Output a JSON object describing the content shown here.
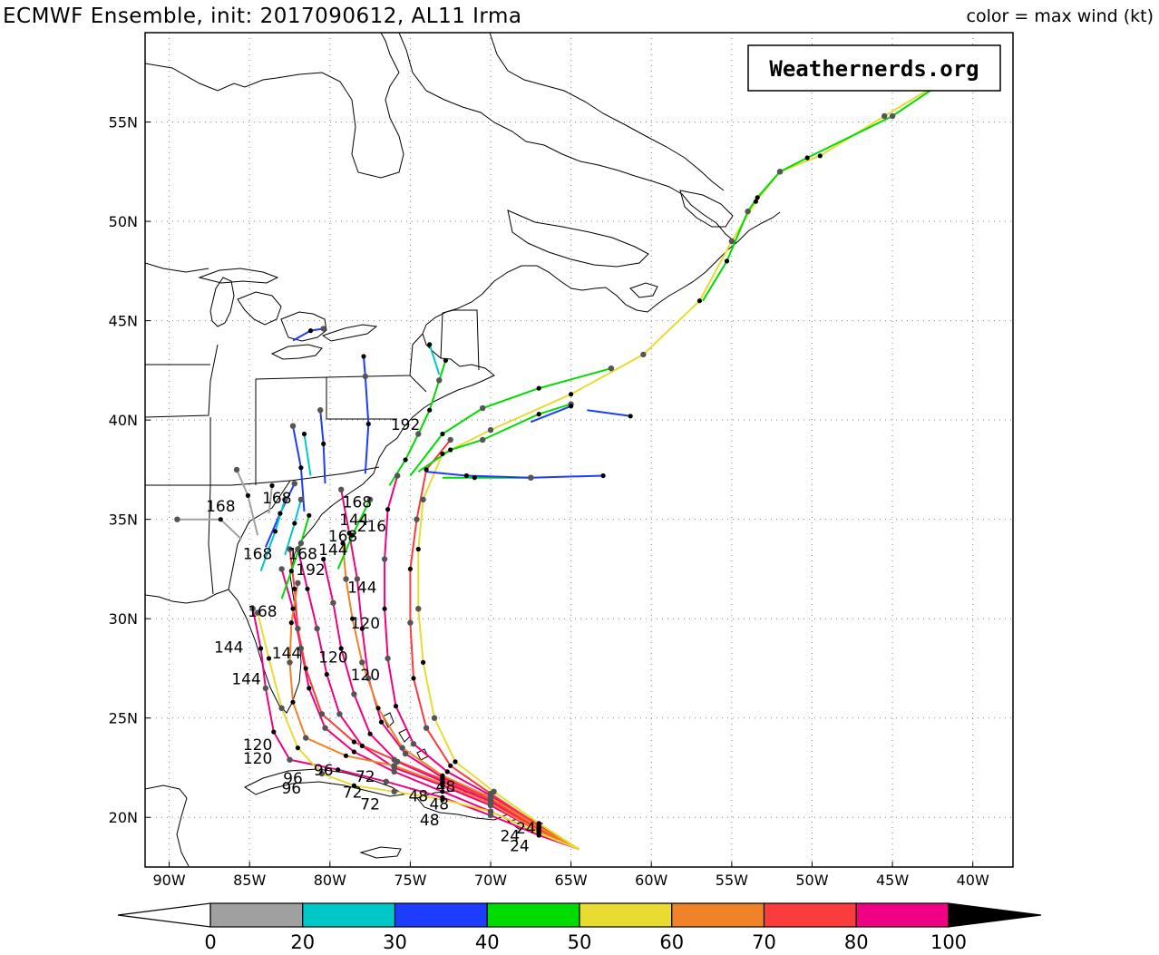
{
  "header": {
    "title": "ECMWF Ensemble, init: 2017090612, AL11 Irma",
    "legend_caption": "color = max wind (kt)"
  },
  "brand": {
    "text": "Weathernerds.org"
  },
  "axes": {
    "lon_labels": [
      "90W",
      "85W",
      "80W",
      "75W",
      "70W",
      "65W",
      "60W",
      "55W",
      "50W",
      "45W",
      "40W"
    ],
    "lon_values": [
      -90,
      -85,
      -80,
      -75,
      -70,
      -65,
      -60,
      -55,
      -50,
      -45,
      -40
    ],
    "lat_labels": [
      "20N",
      "25N",
      "30N",
      "35N",
      "40N",
      "45N",
      "50N",
      "55N"
    ],
    "lat_values": [
      20,
      25,
      30,
      35,
      40,
      45,
      50,
      55
    ],
    "lon_range": [
      -91.5,
      -37.5
    ],
    "lat_range": [
      17.5,
      59.5
    ],
    "grid": "dotted"
  },
  "colorbar": {
    "labels": [
      "0",
      "20",
      "30",
      "40",
      "50",
      "60",
      "70",
      "80",
      "100"
    ],
    "bins": [
      {
        "range": "20-30",
        "color": "#00c8c8"
      },
      {
        "range": "30-40",
        "color": "#1e3cff"
      },
      {
        "range": "40-50",
        "color": "#00dc00"
      },
      {
        "range": "50-60",
        "color": "#e6dc32"
      },
      {
        "range": "60-70",
        "color": "#f08228"
      },
      {
        "range": "70-80",
        "color": "#fa3c3c"
      },
      {
        "range": "80-100",
        "color": "#f00082"
      }
    ],
    "low_color": "#a0a0a0",
    "high_color": "#000000",
    "below_color": "#ffffff"
  },
  "tracks": [
    {
      "color": "#f00082",
      "points": [
        [
          -64.5,
          18.4
        ],
        [
          -67,
          19.2
        ],
        [
          -70,
          20.3
        ],
        [
          -73,
          21.3
        ],
        [
          -76,
          22.3
        ],
        [
          -78.5,
          23.3
        ],
        [
          -80.3,
          24.5
        ],
        [
          -81.3,
          26.5
        ],
        [
          -81.8,
          28.5
        ],
        [
          -82.3,
          30.5
        ],
        [
          -83,
          32.5
        ]
      ]
    },
    {
      "color": "#f00082",
      "points": [
        [
          -64.5,
          18.4
        ],
        [
          -67,
          19.3
        ],
        [
          -70,
          20.6
        ],
        [
          -73,
          21.6
        ],
        [
          -76,
          22.5
        ],
        [
          -78,
          23.6
        ],
        [
          -79.4,
          25.2
        ],
        [
          -80.2,
          27.2
        ],
        [
          -80.8,
          29.5
        ],
        [
          -81.4,
          31.5
        ],
        [
          -82,
          33.5
        ]
      ]
    },
    {
      "color": "#f00082",
      "points": [
        [
          -64.5,
          18.4
        ],
        [
          -67,
          19.4
        ],
        [
          -70,
          20.8
        ],
        [
          -73,
          21.8
        ],
        [
          -75.8,
          22.8
        ],
        [
          -77.5,
          24.2
        ],
        [
          -78.5,
          26.2
        ],
        [
          -79.3,
          28.5
        ],
        [
          -79.8,
          30.8
        ],
        [
          -80.4,
          33
        ]
      ]
    },
    {
      "color": "#f00082",
      "points": [
        [
          -64.5,
          18.4
        ],
        [
          -67,
          19.1
        ],
        [
          -70,
          20.1
        ],
        [
          -73,
          21
        ],
        [
          -76.5,
          21.8
        ],
        [
          -79.5,
          22.4
        ],
        [
          -82.5,
          22.9
        ],
        [
          -83.5,
          24.3
        ],
        [
          -84,
          26.5
        ],
        [
          -84.3,
          28.5
        ],
        [
          -84.8,
          30.5
        ]
      ]
    },
    {
      "color": "#f00082",
      "points": [
        [
          -64.5,
          18.4
        ],
        [
          -67,
          19.5
        ],
        [
          -70,
          21
        ],
        [
          -73,
          22
        ],
        [
          -75.3,
          23.2
        ],
        [
          -76.8,
          24.8
        ],
        [
          -77.6,
          27
        ],
        [
          -78,
          29.5
        ],
        [
          -78.3,
          32
        ],
        [
          -78.8,
          34.3
        ],
        [
          -79.3,
          36.5
        ]
      ]
    },
    {
      "color": "#f00082",
      "points": [
        [
          -64.5,
          18.4
        ],
        [
          -67,
          19.6
        ],
        [
          -70,
          21.1
        ],
        [
          -72.7,
          22.3
        ],
        [
          -74.8,
          23.7
        ],
        [
          -75.9,
          25.6
        ],
        [
          -76.4,
          28
        ],
        [
          -76.6,
          30.5
        ],
        [
          -76.6,
          33
        ],
        [
          -76.4,
          35.5
        ],
        [
          -75.8,
          37.2
        ]
      ]
    },
    {
      "color": "#fa3c3c",
      "points": [
        [
          -64.5,
          18.4
        ],
        [
          -67,
          19.4
        ],
        [
          -70,
          20.9
        ],
        [
          -73,
          21.9
        ],
        [
          -76,
          22.9
        ],
        [
          -78.5,
          23.8
        ],
        [
          -80.5,
          25.2
        ],
        [
          -81.5,
          27.5
        ],
        [
          -82,
          29.5
        ],
        [
          -82.2,
          31.5
        ],
        [
          -82.5,
          33.5
        ]
      ]
    },
    {
      "color": "#fa3c3c",
      "points": [
        [
          -64.5,
          18.4
        ],
        [
          -67,
          19.6
        ],
        [
          -70,
          21.2
        ],
        [
          -72.5,
          22.6
        ],
        [
          -74,
          24.5
        ],
        [
          -74.8,
          27
        ],
        [
          -75,
          29.8
        ],
        [
          -75,
          32.5
        ],
        [
          -74.6,
          35
        ],
        [
          -74,
          37.5
        ],
        [
          -72.5,
          39
        ]
      ]
    },
    {
      "color": "#f08228",
      "points": [
        [
          -64.5,
          18.4
        ],
        [
          -67,
          19.3
        ],
        [
          -70,
          20.7
        ],
        [
          -73,
          21.7
        ],
        [
          -76,
          22.6
        ],
        [
          -79,
          23.1
        ],
        [
          -81.5,
          24
        ],
        [
          -82.3,
          25.8
        ],
        [
          -82.5,
          27.8
        ],
        [
          -82.4,
          29.8
        ],
        [
          -82,
          31.8
        ]
      ]
    },
    {
      "color": "#f08228",
      "points": [
        [
          -64.5,
          18.4
        ],
        [
          -67,
          19.5
        ],
        [
          -70,
          21
        ],
        [
          -73,
          22.1
        ],
        [
          -75.5,
          23.5
        ],
        [
          -77,
          25.5
        ],
        [
          -78,
          27.8
        ],
        [
          -78.6,
          30
        ],
        [
          -79,
          32
        ],
        [
          -79.2,
          33.8
        ]
      ]
    },
    {
      "color": "#e6dc32",
      "points": [
        [
          -64.5,
          18.4
        ],
        [
          -67,
          19.2
        ],
        [
          -70,
          20.3
        ],
        [
          -73,
          20.9
        ],
        [
          -76,
          21.3
        ],
        [
          -78.5,
          21.6
        ],
        [
          -80.5,
          22.2
        ],
        [
          -82,
          23.5
        ],
        [
          -83,
          25.5
        ],
        [
          -83.8,
          28
        ],
        [
          -84.5,
          30.3
        ]
      ]
    },
    {
      "color": "#e6dc32",
      "points": [
        [
          -64.5,
          18.4
        ],
        [
          -67,
          19.7
        ],
        [
          -69.8,
          21.3
        ],
        [
          -72.2,
          22.8
        ],
        [
          -73.5,
          25
        ],
        [
          -74.2,
          27.8
        ],
        [
          -74.5,
          30.5
        ],
        [
          -74.5,
          33.5
        ],
        [
          -74.2,
          36
        ],
        [
          -73,
          38.3
        ],
        [
          -70,
          39.5
        ],
        [
          -65,
          41.3
        ],
        [
          -60.5,
          43.3
        ],
        [
          -57,
          46
        ],
        [
          -55,
          49
        ],
        [
          -53.5,
          51
        ],
        [
          -52,
          52.5
        ],
        [
          -49.5,
          53.3
        ],
        [
          -45.5,
          55.3
        ],
        [
          -42,
          57
        ],
        [
          -39,
          58.5
        ]
      ]
    },
    {
      "color": "#00dc00",
      "points": [
        [
          -76.3,
          36.7
        ],
        [
          -75.3,
          38
        ],
        [
          -74.5,
          39.3
        ],
        [
          -73.8,
          40.5
        ],
        [
          -73.2,
          42
        ],
        [
          -72.8,
          43
        ]
      ]
    },
    {
      "color": "#00dc00",
      "points": [
        [
          -75,
          37.2
        ],
        [
          -73,
          39.3
        ],
        [
          -70.5,
          40.6
        ],
        [
          -67,
          41.6
        ],
        [
          -62.5,
          42.6
        ]
      ]
    },
    {
      "color": "#00dc00",
      "points": [
        [
          -74.5,
          37.4
        ],
        [
          -72.5,
          38.5
        ],
        [
          -70.5,
          39
        ],
        [
          -67,
          40.3
        ],
        [
          -65,
          40.8
        ]
      ]
    },
    {
      "color": "#00dc00",
      "points": [
        [
          -56.8,
          46
        ],
        [
          -55.3,
          48
        ],
        [
          -54,
          50.5
        ],
        [
          -53.4,
          51.2
        ],
        [
          -52,
          52.5
        ],
        [
          -50.3,
          53.2
        ],
        [
          -45,
          55.3
        ],
        [
          -39.5,
          58.3
        ]
      ]
    },
    {
      "color": "#00dc00",
      "points": [
        [
          -73,
          37.1
        ],
        [
          -71,
          37.1
        ],
        [
          -67.5,
          37.1
        ]
      ]
    },
    {
      "color": "#00dc00",
      "points": [
        [
          -83,
          31
        ],
        [
          -82.4,
          32.4
        ],
        [
          -81.8,
          33.8
        ],
        [
          -81.3,
          35.2
        ]
      ]
    },
    {
      "color": "#00dc00",
      "points": [
        [
          -79.5,
          32.5
        ],
        [
          -78.6,
          34.2
        ],
        [
          -77.5,
          36
        ]
      ]
    },
    {
      "color": "#1e3cff",
      "points": [
        [
          -74,
          37.4
        ],
        [
          -71.5,
          37.2
        ],
        [
          -67.5,
          37.1
        ],
        [
          -63,
          37.2
        ]
      ]
    },
    {
      "color": "#1e3cff",
      "points": [
        [
          -64,
          40.5
        ],
        [
          -61.3,
          40.2
        ]
      ]
    },
    {
      "color": "#1e3cff",
      "points": [
        [
          -67.5,
          39.9
        ],
        [
          -65,
          40.7
        ]
      ]
    },
    {
      "color": "#1e3cff",
      "points": [
        [
          -77.8,
          37.3
        ],
        [
          -77.6,
          39.8
        ],
        [
          -77.8,
          42.2
        ],
        [
          -77.9,
          43.2
        ]
      ]
    },
    {
      "color": "#1e3cff",
      "points": [
        [
          -80.3,
          36.8
        ],
        [
          -80.4,
          38.8
        ],
        [
          -80.6,
          40.5
        ]
      ]
    },
    {
      "color": "#1e3cff",
      "points": [
        [
          -81.6,
          35.4
        ],
        [
          -81.8,
          37.6
        ],
        [
          -82.3,
          39.7
        ]
      ]
    },
    {
      "color": "#1e3cff",
      "points": [
        [
          -84,
          33.6
        ],
        [
          -83.1,
          35.3
        ],
        [
          -82.2,
          36.8
        ]
      ]
    },
    {
      "color": "#1e3cff",
      "points": [
        [
          -82.3,
          44
        ],
        [
          -81.2,
          44.5
        ],
        [
          -80.4,
          44.6
        ]
      ]
    },
    {
      "color": "#00c8c8",
      "points": [
        [
          -84.3,
          32.4
        ],
        [
          -83.4,
          34.4
        ],
        [
          -82.8,
          36
        ]
      ]
    },
    {
      "color": "#00c8c8",
      "points": [
        [
          -81.2,
          37.2
        ],
        [
          -81.6,
          39.3
        ]
      ]
    },
    {
      "color": "#00c8c8",
      "points": [
        [
          -73.2,
          42.3
        ],
        [
          -73.8,
          43.8
        ]
      ]
    },
    {
      "color": "#00c8c8",
      "points": [
        [
          -82.8,
          33.2
        ],
        [
          -82.2,
          34.8
        ],
        [
          -81.8,
          36
        ]
      ]
    },
    {
      "color": "#a0a0a0",
      "points": [
        [
          -85.5,
          34
        ],
        [
          -86.8,
          35
        ],
        [
          -89.5,
          35
        ]
      ]
    },
    {
      "color": "#a0a0a0",
      "points": [
        [
          -84.5,
          34.2
        ],
        [
          -85.1,
          36.2
        ],
        [
          -85.8,
          37.5
        ]
      ]
    },
    {
      "color": "#a0a0a0",
      "points": [
        [
          -83.8,
          35.3
        ],
        [
          -83.6,
          36.7
        ]
      ]
    }
  ],
  "labels": [
    {
      "text": "24",
      "lon": -67.8,
      "lat": 19.2
    },
    {
      "text": "24",
      "lon": -68.8,
      "lat": 18.8
    },
    {
      "text": "24",
      "lon": -68.2,
      "lat": 18.3
    },
    {
      "text": "48",
      "lon": -74.5,
      "lat": 20.8
    },
    {
      "text": "48",
      "lon": -73.2,
      "lat": 20.4
    },
    {
      "text": "48",
      "lon": -73.8,
      "lat": 19.6
    },
    {
      "text": "48",
      "lon": -72.8,
      "lat": 21.3
    },
    {
      "text": "72",
      "lon": -78.6,
      "lat": 21
    },
    {
      "text": "72",
      "lon": -77.5,
      "lat": 20.4
    },
    {
      "text": "72",
      "lon": -77.8,
      "lat": 21.8
    },
    {
      "text": "96",
      "lon": -82.3,
      "lat": 21.7
    },
    {
      "text": "96",
      "lon": -82.4,
      "lat": 21.2
    },
    {
      "text": "96",
      "lon": -80.4,
      "lat": 22.1
    },
    {
      "text": "120",
      "lon": -84.5,
      "lat": 23.4
    },
    {
      "text": "120",
      "lon": -84.5,
      "lat": 22.7
    },
    {
      "text": "120",
      "lon": -77.8,
      "lat": 29.5
    },
    {
      "text": "120",
      "lon": -77.8,
      "lat": 26.9
    },
    {
      "text": "120",
      "lon": -79.8,
      "lat": 27.8
    },
    {
      "text": "144",
      "lon": -85.2,
      "lat": 26.7
    },
    {
      "text": "144",
      "lon": -86.3,
      "lat": 28.3
    },
    {
      "text": "144",
      "lon": -82.7,
      "lat": 28
    },
    {
      "text": "144",
      "lon": -78,
      "lat": 31.3
    },
    {
      "text": "144",
      "lon": -79.8,
      "lat": 33.2
    },
    {
      "text": "144",
      "lon": -78.5,
      "lat": 34.7
    },
    {
      "text": "168",
      "lon": -86.8,
      "lat": 35.4
    },
    {
      "text": "168",
      "lon": -83.3,
      "lat": 35.8
    },
    {
      "text": "168",
      "lon": -78.3,
      "lat": 35.6
    },
    {
      "text": "168",
      "lon": -84.5,
      "lat": 33
    },
    {
      "text": "168",
      "lon": -81.7,
      "lat": 33
    },
    {
      "text": "168",
      "lon": -79.2,
      "lat": 33.9
    },
    {
      "text": "168",
      "lon": -84.2,
      "lat": 30.1
    },
    {
      "text": "192",
      "lon": -81.2,
      "lat": 32.2
    },
    {
      "text": "192",
      "lon": -75.3,
      "lat": 39.5
    },
    {
      "text": "216",
      "lon": -77.4,
      "lat": 34.4
    }
  ]
}
